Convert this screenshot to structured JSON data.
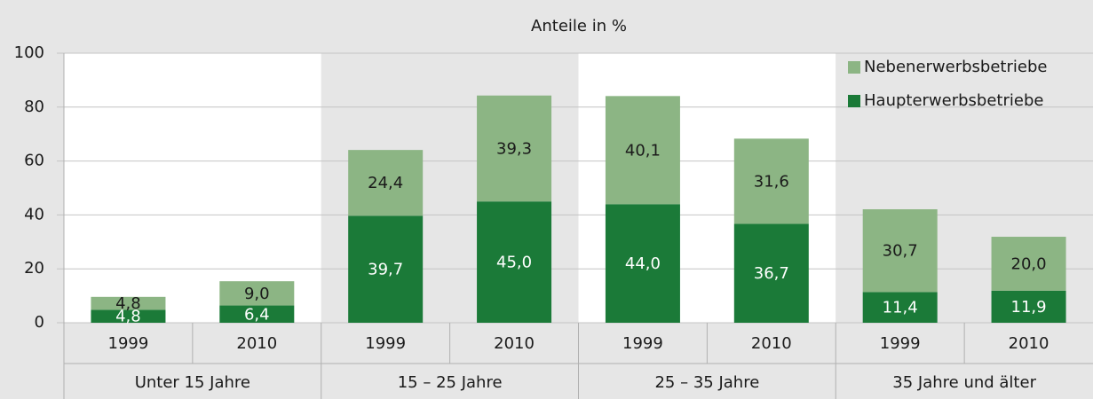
{
  "chart_data": {
    "type": "stacked_bar",
    "subtitle": "Anteile in %",
    "categories": [
      "1999",
      "2010",
      "1999",
      "2010",
      "1999",
      "2010",
      "1999",
      "2010"
    ],
    "groups": [
      "Unter 15 Jahre",
      "15 – 25 Jahre",
      "25 – 35 Jahre",
      "35 Jahre und älter"
    ],
    "series": [
      {
        "name": "Haupterwerbsbetriebe",
        "color": "#1b7a38",
        "values": [
          4.8,
          6.4,
          39.7,
          45.0,
          44.0,
          36.7,
          11.4,
          11.9
        ],
        "value_labels": [
          "4,8",
          "6,4",
          "39,7",
          "45,0",
          "44,0",
          "36,7",
          "11,4",
          "11,9"
        ]
      },
      {
        "name": "Nebenerwerbsbetriebe",
        "color": "#8cb584",
        "values": [
          4.8,
          9.0,
          24.4,
          39.3,
          40.1,
          31.6,
          30.7,
          20.0
        ],
        "value_labels": [
          "4,8",
          "9,0",
          "24,4",
          "39,3",
          "40,1",
          "31,6",
          "30,7",
          "20,0"
        ]
      }
    ],
    "ylim": [
      0,
      100
    ],
    "yticks": [
      0,
      20,
      40,
      60,
      80,
      100
    ],
    "grid": true,
    "legend": "top-right"
  }
}
